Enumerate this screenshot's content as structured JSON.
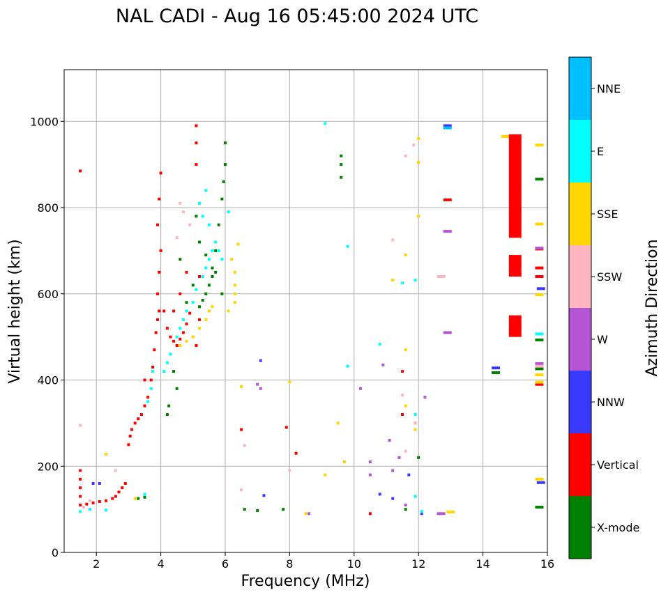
{
  "chart_data": {
    "type": "scatter",
    "title": "NAL CADI - Aug 16 05:45:00 2024 UTC",
    "xlabel": "Frequency (MHz)",
    "ylabel": "Virtual height (km)",
    "xlim": [
      1,
      16
    ],
    "ylim": [
      0,
      1120
    ],
    "xticks": [
      2,
      4,
      6,
      8,
      10,
      12,
      14,
      16
    ],
    "yticks": [
      0,
      200,
      400,
      600,
      800,
      1000
    ],
    "grid": true,
    "colorbar": {
      "label": "Azimuth Direction",
      "categories": [
        "X-mode",
        "Vertical",
        "NNW",
        "W",
        "SSW",
        "SSE",
        "E",
        "NNE"
      ],
      "colors": [
        "#008000",
        "#ff0000",
        "#3a3aff",
        "#b455d4",
        "#ffb6c1",
        "#ffd700",
        "#00ffff",
        "#00bfff"
      ]
    },
    "series": [
      {
        "name": "X-mode",
        "points": [
          [
            3.3,
            125
          ],
          [
            3.5,
            128
          ],
          [
            4.2,
            320
          ],
          [
            4.25,
            340
          ],
          [
            4.5,
            380
          ],
          [
            4.4,
            420
          ],
          [
            4.6,
            680
          ],
          [
            4.8,
            580
          ],
          [
            5,
            620
          ],
          [
            5.2,
            570
          ],
          [
            5.3,
            585
          ],
          [
            5.4,
            600
          ],
          [
            5.5,
            620
          ],
          [
            5.6,
            660
          ],
          [
            5.7,
            700
          ],
          [
            5.8,
            760
          ],
          [
            5.9,
            820
          ],
          [
            5.95,
            860
          ],
          [
            6,
            900
          ],
          [
            6,
            950
          ],
          [
            5.5,
            560
          ],
          [
            5.6,
            640
          ],
          [
            5.2,
            720
          ],
          [
            5.1,
            780
          ],
          [
            5.4,
            690
          ],
          [
            5.7,
            650
          ],
          [
            5.9,
            600
          ],
          [
            9.6,
            870
          ],
          [
            9.6,
            900
          ],
          [
            9.6,
            920
          ],
          [
            6.6,
            100
          ],
          [
            7.0,
            97
          ],
          [
            7.8,
            100
          ],
          [
            11.6,
            100
          ],
          [
            12,
            220
          ],
          [
            14.4,
            417
          ],
          [
            15.75,
            105
          ],
          [
            15.75,
            426
          ],
          [
            15.75,
            493
          ],
          [
            15.75,
            866
          ]
        ]
      },
      {
        "name": "Vertical",
        "points": [
          [
            1.5,
            885
          ],
          [
            1.5,
            190
          ],
          [
            1.5,
            170
          ],
          [
            1.5,
            150
          ],
          [
            1.5,
            130
          ],
          [
            1.5,
            110
          ],
          [
            1.7,
            112
          ],
          [
            1.9,
            115
          ],
          [
            2.1,
            118
          ],
          [
            2.3,
            120
          ],
          [
            2.5,
            125
          ],
          [
            2.6,
            130
          ],
          [
            2.7,
            140
          ],
          [
            2.8,
            150
          ],
          [
            2.9,
            160
          ],
          [
            3.0,
            250
          ],
          [
            3.05,
            270
          ],
          [
            3.1,
            285
          ],
          [
            3.2,
            300
          ],
          [
            3.3,
            310
          ],
          [
            3.4,
            320
          ],
          [
            3.5,
            340
          ],
          [
            3.6,
            360
          ],
          [
            3.7,
            400
          ],
          [
            3.75,
            430
          ],
          [
            3.8,
            470
          ],
          [
            3.85,
            510
          ],
          [
            3.9,
            540
          ],
          [
            3.95,
            560
          ],
          [
            3.9,
            600
          ],
          [
            3.95,
            650
          ],
          [
            4.0,
            700
          ],
          [
            3.9,
            760
          ],
          [
            3.95,
            820
          ],
          [
            4.0,
            880
          ],
          [
            4.1,
            560
          ],
          [
            4.2,
            520
          ],
          [
            4.3,
            500
          ],
          [
            4.4,
            490
          ],
          [
            4.5,
            480
          ],
          [
            4.6,
            495
          ],
          [
            4.7,
            510
          ],
          [
            4.8,
            530
          ],
          [
            4.9,
            555
          ],
          [
            4.4,
            560
          ],
          [
            4.6,
            600
          ],
          [
            4.8,
            650
          ],
          [
            5.1,
            480
          ],
          [
            5.2,
            640
          ],
          [
            5.1,
            990
          ],
          [
            5.1,
            900
          ],
          [
            5.1,
            950
          ],
          [
            5.2,
            540
          ],
          [
            3.5,
            400
          ],
          [
            6.5,
            285
          ],
          [
            7.9,
            290
          ],
          [
            8.2,
            230
          ],
          [
            10.5,
            90
          ],
          [
            11.5,
            420
          ],
          [
            11.5,
            320
          ],
          [
            12.9,
            818
          ],
          [
            15.75,
            640
          ],
          [
            15.75,
            660
          ],
          [
            15.75,
            390
          ],
          [
            15.75,
            704
          ]
        ]
      },
      {
        "name": "NNW",
        "points": [
          [
            1.9,
            160
          ],
          [
            2.1,
            160
          ],
          [
            7.2,
            132
          ],
          [
            7.1,
            445
          ],
          [
            10.8,
            135
          ],
          [
            11.2,
            125
          ],
          [
            11.7,
            180
          ],
          [
            12.1,
            90
          ],
          [
            12.9,
            990
          ],
          [
            14.4,
            428
          ],
          [
            15.8,
            612
          ],
          [
            15.8,
            162
          ]
        ]
      },
      {
        "name": "W",
        "points": [
          [
            7,
            390
          ],
          [
            7.1,
            380
          ],
          [
            8.6,
            90
          ],
          [
            10.2,
            380
          ],
          [
            10.5,
            210
          ],
          [
            10.5,
            180
          ],
          [
            10.9,
            435
          ],
          [
            11.1,
            260
          ],
          [
            11.2,
            190
          ],
          [
            11.4,
            220
          ],
          [
            11.6,
            110
          ],
          [
            11.9,
            300
          ],
          [
            12.2,
            360
          ],
          [
            12.7,
            90
          ],
          [
            12.9,
            745
          ],
          [
            12.9,
            510
          ],
          [
            15.75,
            706
          ],
          [
            15.75,
            438
          ]
        ]
      },
      {
        "name": "SSW",
        "points": [
          [
            1.5,
            295
          ],
          [
            1.6,
            105
          ],
          [
            1.8,
            120
          ],
          [
            2.6,
            190
          ],
          [
            4.5,
            730
          ],
          [
            4.7,
            790
          ],
          [
            4.9,
            760
          ],
          [
            4.6,
            810
          ],
          [
            6.5,
            145
          ],
          [
            6.6,
            248
          ],
          [
            8.0,
            190
          ],
          [
            11.2,
            725
          ],
          [
            11.5,
            365
          ],
          [
            11.6,
            235
          ],
          [
            11.6,
            920
          ],
          [
            11.85,
            945
          ],
          [
            11.9,
            300
          ],
          [
            12.7,
            640
          ],
          [
            15.75,
            432
          ]
        ]
      },
      {
        "name": "SSE",
        "points": [
          [
            2.3,
            228
          ],
          [
            3.2,
            125
          ],
          [
            4.6,
            480
          ],
          [
            4.8,
            490
          ],
          [
            5.0,
            500
          ],
          [
            5.2,
            520
          ],
          [
            5.4,
            540
          ],
          [
            5.5,
            560
          ],
          [
            5.6,
            570
          ],
          [
            6.1,
            560
          ],
          [
            6.3,
            580
          ],
          [
            6.3,
            600
          ],
          [
            6.3,
            620
          ],
          [
            6.3,
            650
          ],
          [
            6.2,
            680
          ],
          [
            6.4,
            715
          ],
          [
            6.5,
            385
          ],
          [
            8.0,
            395
          ],
          [
            8.5,
            90
          ],
          [
            9.1,
            180
          ],
          [
            9.5,
            300
          ],
          [
            9.7,
            210
          ],
          [
            11.2,
            632
          ],
          [
            11.6,
            340
          ],
          [
            11.6,
            690
          ],
          [
            11.6,
            470
          ],
          [
            11.9,
            285
          ],
          [
            12.0,
            780
          ],
          [
            12.0,
            905
          ],
          [
            12.0,
            960
          ],
          [
            13.0,
            94
          ],
          [
            14.7,
            965
          ],
          [
            15.75,
            945
          ],
          [
            15.75,
            762
          ],
          [
            15.75,
            395
          ],
          [
            15.75,
            412
          ],
          [
            15.75,
            170
          ],
          [
            15.75,
            598
          ]
        ]
      },
      {
        "name": "E",
        "points": [
          [
            1.5,
            95
          ],
          [
            1.8,
            100
          ],
          [
            2.3,
            98
          ],
          [
            3.5,
            135
          ],
          [
            3.6,
            350
          ],
          [
            3.7,
            380
          ],
          [
            3.75,
            420
          ],
          [
            4.1,
            420
          ],
          [
            4.2,
            440
          ],
          [
            4.3,
            460
          ],
          [
            4.5,
            500
          ],
          [
            4.6,
            520
          ],
          [
            4.7,
            540
          ],
          [
            4.8,
            560
          ],
          [
            5.0,
            580
          ],
          [
            5.1,
            610
          ],
          [
            5.3,
            640
          ],
          [
            5.4,
            660
          ],
          [
            5.5,
            680
          ],
          [
            5.6,
            700
          ],
          [
            5.3,
            780
          ],
          [
            5.5,
            760
          ],
          [
            5.7,
            720
          ],
          [
            5.8,
            700
          ],
          [
            5.9,
            680
          ],
          [
            6.1,
            790
          ],
          [
            5.4,
            840
          ],
          [
            5.2,
            810
          ],
          [
            9.1,
            995
          ],
          [
            9.8,
            710
          ],
          [
            9.8,
            432
          ],
          [
            10.8,
            483
          ],
          [
            11.5,
            625
          ],
          [
            11.9,
            632
          ],
          [
            11.9,
            320
          ],
          [
            11.9,
            130
          ],
          [
            12.1,
            95
          ],
          [
            15.75,
            507
          ]
        ]
      },
      {
        "name": "NNE",
        "points": [
          [
            12.9,
            985
          ]
        ]
      },
      {
        "name": "Vertical-bars",
        "points": [
          [
            15.0,
            500
          ],
          [
            15.0,
            550
          ],
          [
            15.0,
            640
          ],
          [
            15.0,
            690
          ],
          [
            15.0,
            730
          ],
          [
            15.0,
            970
          ]
        ]
      }
    ]
  }
}
